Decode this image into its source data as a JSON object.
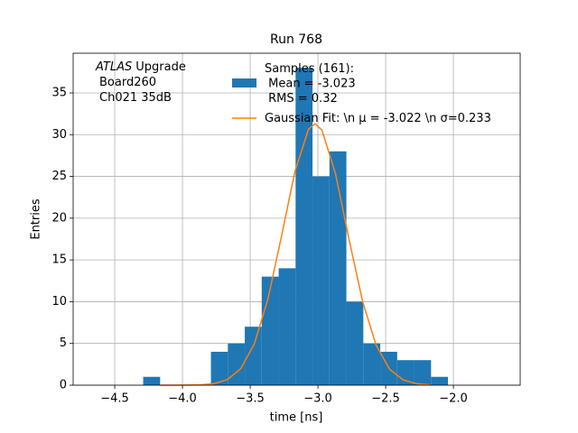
{
  "chart_data": {
    "type": "histogram",
    "title": "Run 768",
    "xlabel": "time [ns]",
    "ylabel": "Entries",
    "annotation": {
      "italic": "ATLAS",
      "lines": [
        "Upgrade",
        "Board260",
        "Ch021 35dB"
      ]
    },
    "bins": [
      -4.29,
      -4.165,
      -4.04,
      -3.915,
      -3.79,
      -3.665,
      -3.54,
      -3.415,
      -3.29,
      -3.165,
      -3.04,
      -2.915,
      -2.79,
      -2.665,
      -2.54,
      -2.415,
      -2.29,
      -2.165,
      -2.04
    ],
    "series": [
      {
        "name": "Samples (161):\n Mean = -3.023\n RMS = 0.32",
        "color": "#1f77b4",
        "values": [
          1,
          0,
          0,
          0,
          4,
          5,
          7,
          13,
          14,
          38,
          25,
          28,
          10,
          5,
          4,
          3,
          3,
          1
        ]
      },
      {
        "name": "Gaussian Fit: \\n μ = -3.022 \\n σ=0.233",
        "color": "#ff7f0e",
        "type": "line",
        "x": [
          -4.17,
          -4.07,
          -3.97,
          -3.87,
          -3.77,
          -3.67,
          -3.57,
          -3.47,
          -3.37,
          -3.27,
          -3.17,
          -3.07,
          -3.02,
          -2.97,
          -2.87,
          -2.77,
          -2.67,
          -2.57,
          -2.47,
          -2.37,
          -2.27,
          -2.17
        ],
        "values": [
          0,
          0,
          0.01,
          0.04,
          0.18,
          0.65,
          1.97,
          4.93,
          10.26,
          17.77,
          25.58,
          30.64,
          31.3,
          30.53,
          25.3,
          17.43,
          10.0,
          4.77,
          1.89,
          0.62,
          0.17,
          0.04
        ]
      }
    ],
    "xlim": [
      -4.807,
      -1.507
    ],
    "ylim": [
      0,
      39.75
    ],
    "xticks": [
      {
        "value": -4.5,
        "label": "−4.5"
      },
      {
        "value": -4.0,
        "label": "−4.0"
      },
      {
        "value": -3.5,
        "label": "−3.5"
      },
      {
        "value": -3.0,
        "label": "−3.0"
      },
      {
        "value": -2.5,
        "label": "−2.5"
      },
      {
        "value": -2.0,
        "label": "−2.0"
      }
    ],
    "yticks": [
      0,
      5,
      10,
      15,
      20,
      25,
      30,
      35
    ],
    "grid": true
  }
}
